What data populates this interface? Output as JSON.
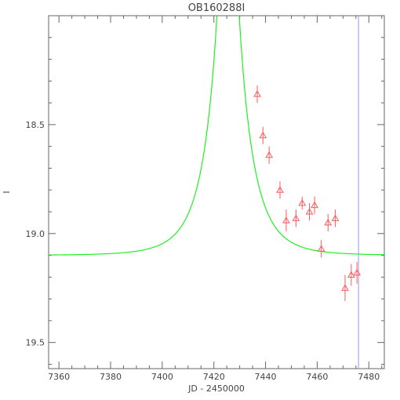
{
  "chart_data": {
    "type": "scatter",
    "title": "OB160288I",
    "xlabel": "JD - 2450000",
    "ylabel": "I",
    "xlim": [
      7356,
      7486
    ],
    "ylim": [
      19.62,
      18.0
    ],
    "y_inverted": true,
    "grid": false,
    "legend": "none",
    "x_ticks": [
      7360,
      7380,
      7400,
      7420,
      7440,
      7460,
      7480
    ],
    "y_ticks": [
      18.5,
      19.0,
      19.5
    ],
    "y_tick_labels": [
      "18.5",
      "19.0",
      "19.5"
    ],
    "series": [
      {
        "marker": "triangle",
        "color": "#ff5a5a",
        "points": [
          {
            "x": 7436.8,
            "y": 18.36,
            "err": 0.04
          },
          {
            "x": 7439.0,
            "y": 18.55,
            "err": 0.04
          },
          {
            "x": 7441.4,
            "y": 18.64,
            "err": 0.04
          },
          {
            "x": 7445.6,
            "y": 18.8,
            "err": 0.04
          },
          {
            "x": 7448.0,
            "y": 18.94,
            "err": 0.05
          },
          {
            "x": 7451.8,
            "y": 18.93,
            "err": 0.04
          },
          {
            "x": 7454.2,
            "y": 18.86,
            "err": 0.03
          },
          {
            "x": 7457.0,
            "y": 18.9,
            "err": 0.04
          },
          {
            "x": 7459.0,
            "y": 18.87,
            "err": 0.04
          },
          {
            "x": 7461.6,
            "y": 19.07,
            "err": 0.04
          },
          {
            "x": 7464.2,
            "y": 18.95,
            "err": 0.04
          },
          {
            "x": 7467.0,
            "y": 18.93,
            "err": 0.04
          },
          {
            "x": 7470.8,
            "y": 19.25,
            "err": 0.06
          },
          {
            "x": 7473.2,
            "y": 19.19,
            "err": 0.05
          },
          {
            "x": 7475.4,
            "y": 19.18,
            "err": 0.05
          }
        ]
      },
      {
        "type": "line",
        "color": "#22ee22",
        "model": {
          "t0": 7425.5,
          "u0": 0.13,
          "tE": 12.0,
          "base_mag": 19.1
        }
      }
    ],
    "vertical_line": {
      "x": 7476.0,
      "color": "#9999dd"
    }
  }
}
